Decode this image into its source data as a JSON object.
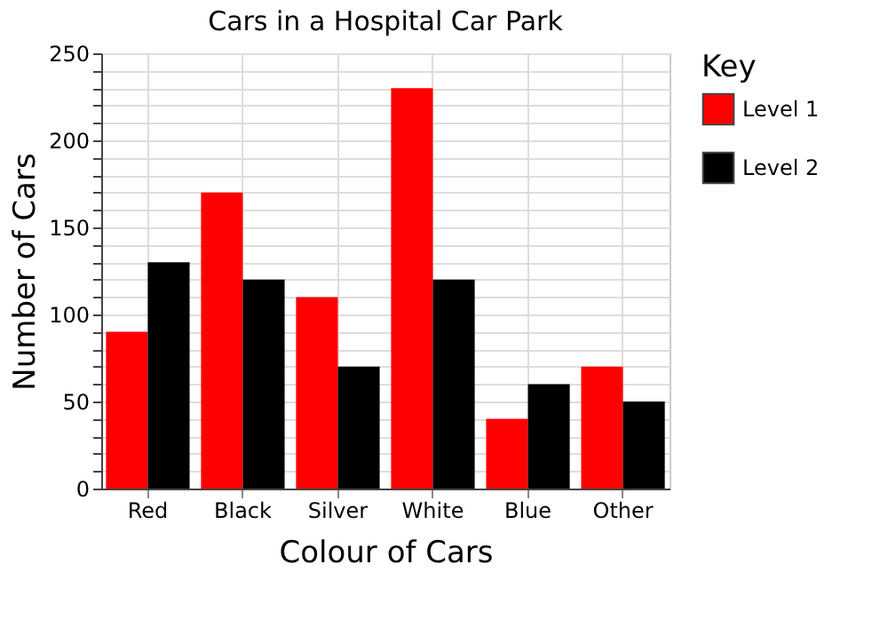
{
  "chart_data": {
    "type": "bar",
    "title": "Cars in a Hospital Car Park",
    "xlabel": "Colour of Cars",
    "ylabel": "Number of Cars",
    "legend_title": "Key",
    "categories": [
      "Red",
      "Black",
      "Silver",
      "White",
      "Blue",
      "Other"
    ],
    "series": [
      {
        "name": "Level 1",
        "color": "#ff0000",
        "values": [
          90,
          170,
          110,
          230,
          40,
          70
        ]
      },
      {
        "name": "Level 2",
        "color": "#000000",
        "values": [
          130,
          120,
          70,
          120,
          60,
          50
        ]
      }
    ],
    "ylim": [
      0,
      250
    ],
    "yticks": [
      0,
      {
        "value": 10,
        "label": null
      },
      {
        "value": 20,
        "label": null
      },
      {
        "value": 30,
        "label": null
      },
      {
        "value": 40,
        "label": null
      },
      50,
      {
        "value": 60,
        "label": null
      },
      {
        "value": 70,
        "label": null
      },
      {
        "value": 80,
        "label": null
      },
      {
        "value": 90,
        "label": null
      },
      100,
      {
        "value": 110,
        "label": null
      },
      {
        "value": 120,
        "label": null
      },
      {
        "value": 130,
        "label": null
      },
      {
        "value": 140,
        "label": null
      },
      150,
      {
        "value": 160,
        "label": null
      },
      {
        "value": 170,
        "label": null
      },
      {
        "value": 180,
        "label": null
      },
      {
        "value": 190,
        "label": null
      },
      200,
      {
        "value": 210,
        "label": null
      },
      {
        "value": 220,
        "label": null
      },
      {
        "value": 230,
        "label": null
      },
      {
        "value": 240,
        "label": null
      },
      250
    ],
    "grid": true,
    "legend": "top right"
  }
}
